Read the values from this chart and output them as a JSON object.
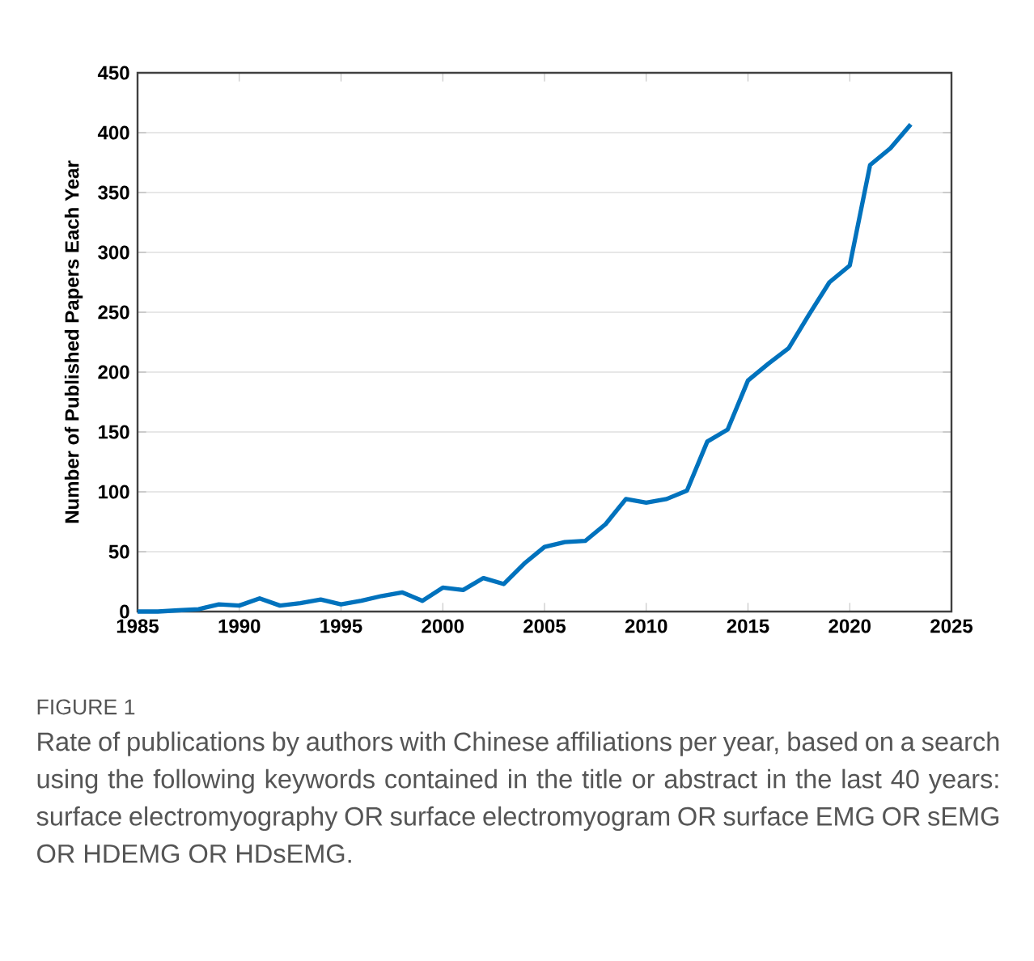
{
  "chart_data": {
    "type": "line",
    "ylabel": "Number of Published Papers Each Year",
    "x": [
      1985,
      1986,
      1987,
      1988,
      1989,
      1990,
      1991,
      1992,
      1993,
      1994,
      1995,
      1996,
      1997,
      1998,
      1999,
      2000,
      2001,
      2002,
      2003,
      2004,
      2005,
      2006,
      2007,
      2008,
      2009,
      2010,
      2011,
      2012,
      2013,
      2014,
      2015,
      2016,
      2017,
      2018,
      2019,
      2020,
      2021,
      2022,
      2023
    ],
    "series": [
      {
        "color": "#0072bd",
        "values": [
          0,
          0,
          1,
          2,
          6,
          5,
          11,
          5,
          7,
          10,
          6,
          9,
          13,
          16,
          9,
          20,
          18,
          28,
          23,
          40,
          54,
          58,
          59,
          73,
          94,
          91,
          94,
          101,
          142,
          152,
          193,
          207,
          220,
          248,
          275,
          289,
          373,
          387,
          407
        ]
      }
    ],
    "xlim": [
      1985,
      2025
    ],
    "xticks": [
      1985,
      1990,
      1995,
      2000,
      2005,
      2010,
      2015,
      2020,
      2025
    ],
    "ylim": [
      0,
      450
    ],
    "yticks": [
      0,
      50,
      100,
      150,
      200,
      250,
      300,
      350,
      400,
      450
    ],
    "grid": "y",
    "line_style": "solid",
    "annotations": [
      "FIGURE 1",
      "Rate of publications by authors with Chinese affiliations per year, based on a search using the following keywords contained in the title or abstract in the last 40 years: surface electromyography OR surface electromyogram OR surface EMG OR sEMG OR HDEMG OR HDsEMG."
    ]
  }
}
